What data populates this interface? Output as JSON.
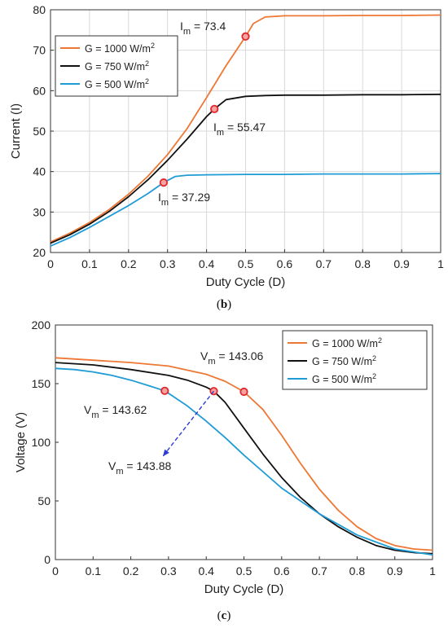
{
  "captions": [
    {
      "open": "(",
      "letter": "b",
      "close": ")"
    },
    {
      "open": "(",
      "letter": "c",
      "close": ")"
    }
  ],
  "colors": {
    "g1000": "#EE7733",
    "g750": "#111111",
    "g500": "#1F9BD6",
    "marker": "#E2262B",
    "arrow": "#2B3BD6",
    "grid": "#D9D9D9",
    "legend_border": "#333333"
  },
  "chart_data": [
    {
      "type": "line",
      "xlabel": "Duty Cycle (D)",
      "ylabel": "Current (I)",
      "xlim": [
        0,
        1
      ],
      "ylim": [
        20,
        80
      ],
      "xticks": [
        0,
        0.1,
        0.2,
        0.3,
        0.4,
        0.5,
        0.6,
        0.7,
        0.8,
        0.9,
        1
      ],
      "xtick_labels": [
        "0",
        "0.1",
        "0.2",
        "0.3",
        "0.4",
        "0.5",
        "0.6",
        "0.7",
        "0.8",
        "0.9",
        "1"
      ],
      "yticks": [
        20,
        30,
        40,
        50,
        60,
        70,
        80
      ],
      "ytick_labels": [
        "20",
        "30",
        "40",
        "50",
        "60",
        "70",
        "80"
      ],
      "grid": true,
      "legend_position": "upper-left",
      "series": [
        {
          "name_prefix": "G = 1000 W/m",
          "name_sup": "2",
          "color_key": "g1000",
          "x": [
            0,
            0.05,
            0.1,
            0.15,
            0.2,
            0.25,
            0.3,
            0.35,
            0.4,
            0.45,
            0.5,
            0.52,
            0.55,
            0.6,
            0.7,
            0.8,
            0.9,
            1
          ],
          "y": [
            22.6,
            24.8,
            27.4,
            30.6,
            34.4,
            38.9,
            44.2,
            50.6,
            58.3,
            66.2,
            73.4,
            76.6,
            78.2,
            78.5,
            78.5,
            78.6,
            78.6,
            78.7
          ]
        },
        {
          "name_prefix": "G = 750 W/m",
          "name_sup": "2",
          "color_key": "g750",
          "x": [
            0,
            0.05,
            0.1,
            0.15,
            0.2,
            0.25,
            0.3,
            0.35,
            0.4,
            0.42,
            0.45,
            0.5,
            0.55,
            0.6,
            0.7,
            0.8,
            0.9,
            1
          ],
          "y": [
            22.3,
            24.4,
            27.0,
            30.1,
            33.8,
            38.0,
            42.8,
            48.0,
            53.6,
            55.47,
            57.8,
            58.6,
            58.8,
            58.9,
            58.9,
            59.0,
            59.0,
            59.1
          ]
        },
        {
          "name_prefix": "G = 500 W/m",
          "name_sup": "2",
          "color_key": "g500",
          "x": [
            0,
            0.05,
            0.1,
            0.15,
            0.2,
            0.25,
            0.29,
            0.32,
            0.35,
            0.4,
            0.5,
            0.6,
            0.7,
            0.8,
            0.9,
            1
          ],
          "y": [
            21.6,
            23.7,
            26.2,
            28.9,
            31.6,
            34.6,
            37.29,
            38.8,
            39.1,
            39.2,
            39.3,
            39.3,
            39.4,
            39.4,
            39.4,
            39.5
          ]
        }
      ],
      "markers": [
        {
          "x": 0.5,
          "y": 73.4
        },
        {
          "x": 0.42,
          "y": 55.47
        },
        {
          "x": 0.29,
          "y": 37.29
        }
      ],
      "annotations": [
        {
          "main": "I",
          "sub": "m",
          "rest": " = 73.4"
        },
        {
          "main": "I",
          "sub": "m",
          "rest": " = 55.47"
        },
        {
          "main": "I",
          "sub": "m",
          "rest": " = 37.29"
        }
      ]
    },
    {
      "type": "line",
      "xlabel": "Duty Cycle (D)",
      "ylabel": "Voltage (V)",
      "xlim": [
        0,
        1
      ],
      "ylim": [
        0,
        200
      ],
      "xticks": [
        0,
        0.1,
        0.2,
        0.3,
        0.4,
        0.5,
        0.6,
        0.7,
        0.8,
        0.9,
        1
      ],
      "xtick_labels": [
        "0",
        "0.1",
        "0.2",
        "0.3",
        "0.4",
        "0.5",
        "0.6",
        "0.7",
        "0.8",
        "0.9",
        "1"
      ],
      "yticks": [
        0,
        50,
        100,
        150,
        200
      ],
      "ytick_labels": [
        "0",
        "50",
        "100",
        "150",
        "200"
      ],
      "grid": false,
      "legend_position": "upper-right",
      "series": [
        {
          "name_prefix": "G = 1000 W/m",
          "name_sup": "2",
          "color_key": "g1000",
          "x": [
            0,
            0.1,
            0.2,
            0.3,
            0.4,
            0.45,
            0.5,
            0.55,
            0.6,
            0.65,
            0.7,
            0.75,
            0.8,
            0.85,
            0.9,
            0.95,
            1
          ],
          "y": [
            172,
            170,
            168,
            165,
            158,
            152,
            143.06,
            128,
            106,
            82,
            60,
            42,
            28,
            18,
            12,
            9,
            8
          ]
        },
        {
          "name_prefix": "G = 750 W/m",
          "name_sup": "2",
          "color_key": "g750",
          "x": [
            0,
            0.1,
            0.2,
            0.3,
            0.35,
            0.4,
            0.42,
            0.45,
            0.5,
            0.55,
            0.6,
            0.65,
            0.7,
            0.75,
            0.8,
            0.85,
            0.9,
            0.95,
            1
          ],
          "y": [
            168,
            166,
            162,
            157,
            153,
            147,
            143.62,
            134,
            112,
            90,
            70,
            53,
            39,
            28,
            19,
            12,
            8,
            6,
            5
          ]
        },
        {
          "name_prefix": "G = 500 W/m",
          "name_sup": "2",
          "color_key": "g500",
          "x": [
            0,
            0.05,
            0.1,
            0.15,
            0.2,
            0.25,
            0.29,
            0.35,
            0.4,
            0.45,
            0.5,
            0.55,
            0.6,
            0.7,
            0.8,
            0.9,
            1
          ],
          "y": [
            163,
            162,
            160,
            157,
            153,
            148,
            143.88,
            131,
            118,
            104,
            89,
            75,
            61,
            39,
            21,
            9,
            4
          ]
        }
      ],
      "markers": [
        {
          "x": 0.29,
          "y": 143.88
        },
        {
          "x": 0.42,
          "y": 143.62
        },
        {
          "x": 0.5,
          "y": 143.06
        }
      ],
      "annotations": [
        {
          "main": "V",
          "sub": "m",
          "rest": " = 143.06"
        },
        {
          "main": "V",
          "sub": "m",
          "rest": " = 143.62"
        },
        {
          "main": "V",
          "sub": "m",
          "rest": " = 143.88"
        }
      ]
    }
  ]
}
